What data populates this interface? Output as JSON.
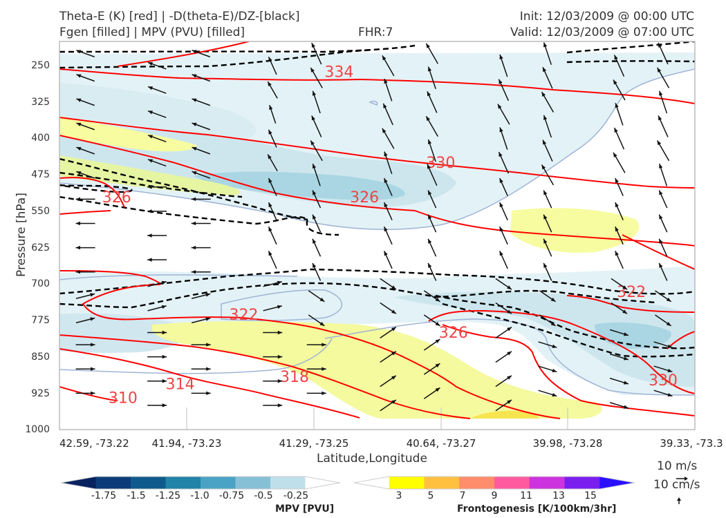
{
  "header": {
    "title_left_1": "Theta-E (K) [red] | -D(theta-E)/DZ-[black]",
    "title_left_2": "Fgen [filled] | MPV (PVU) [filled]",
    "fhr": "FHR:7",
    "init": "Init: 12/03/2009 @ 00:00 UTC",
    "valid": "Valid: 12/03/2009 @ 07:00 UTC"
  },
  "colors": {
    "theta_e": "#ff0000",
    "ddz": "#000000",
    "fgen_3_5": "#f7fca0",
    "mpv_light": "#d6ecf2",
    "mpv_mid": "#a9d6e2",
    "wind": "#111111"
  },
  "chart_data": {
    "type": "cross-section",
    "xlabel": "Latitude,Longitude",
    "ylabel": "Pressure [hPa]",
    "y_scale": "linear, inverted",
    "ylim": [
      1000,
      200
    ],
    "yticks": [
      250,
      325,
      400,
      475,
      550,
      625,
      700,
      775,
      850,
      925,
      1000
    ],
    "xticks": [
      "42.59, -73.22",
      "41.94, -73.23",
      "41.29, -73.25",
      "40.64, -73.27",
      "39.98, -73.28",
      "39.33, -73.3"
    ],
    "theta_e_labels": [
      {
        "value": "334",
        "x": 2.2,
        "p": 265
      },
      {
        "value": "330",
        "x": 3.0,
        "p": 452
      },
      {
        "value": "326",
        "x": 2.4,
        "p": 523
      },
      {
        "value": "326",
        "x": 0.45,
        "p": 523
      },
      {
        "value": "326",
        "x": 3.1,
        "p": 802
      },
      {
        "value": "322",
        "x": 1.45,
        "p": 765
      },
      {
        "value": "322",
        "x": 4.5,
        "p": 718
      },
      {
        "value": "318",
        "x": 1.85,
        "p": 893
      },
      {
        "value": "314",
        "x": 0.95,
        "p": 908
      },
      {
        "value": "310",
        "x": 0.5,
        "p": 937
      },
      {
        "value": "330",
        "x": 4.75,
        "p": 900
      }
    ],
    "wind_reference": [
      "10 m/s",
      "10 cm/s"
    ],
    "grid": true
  },
  "colorbar_mpv": {
    "title": "MPV [PVU]",
    "labels": [
      "-1.75",
      "-1.5",
      "-1.25",
      "-1.0",
      "-0.75",
      "-0.5",
      "-0.25"
    ],
    "colors": [
      "#08215f",
      "#0c3c78",
      "#0f5a8c",
      "#2183a8",
      "#4ba3c3",
      "#86c0d6",
      "#bfe0ea",
      "#ffffff"
    ]
  },
  "colorbar_fgen": {
    "title": "Frontogenesis [K/100km/3hr]",
    "labels": [
      "3",
      "5",
      "7",
      "9",
      "11",
      "13",
      "15"
    ],
    "colors": [
      "#ffffff",
      "#ffff00",
      "#ffc040",
      "#ff8c6a",
      "#ff5aa0",
      "#cc33dd",
      "#7a1ef0",
      "#2a10ff"
    ]
  },
  "legend": {
    "wind_top": "10 m/s",
    "wind_bottom": "10 cm/s"
  }
}
